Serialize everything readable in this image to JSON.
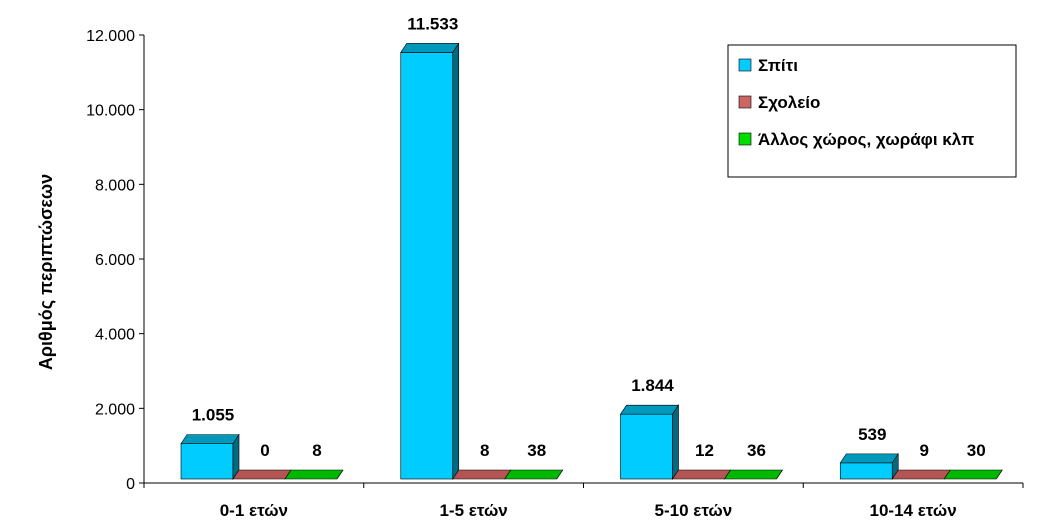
{
  "chart_data": {
    "type": "bar",
    "categories": [
      "0-1 ετών",
      "1-5 ετών",
      "5-10 ετών",
      "10-14 ετών"
    ],
    "series": [
      {
        "name": "Σπίτι",
        "values": [
          1055,
          11533,
          1844,
          539
        ],
        "labels": [
          "1.055",
          "11.533",
          "1.844",
          "539"
        ],
        "color": "#00ccff",
        "top": "#0099bb",
        "side": "#006a80"
      },
      {
        "name": "Σχολείο",
        "values": [
          0,
          8,
          12,
          9
        ],
        "labels": [
          "0",
          "8",
          "12",
          "9"
        ],
        "color": "#cc6666",
        "top": "#b45555",
        "side": "#7a3030"
      },
      {
        "name": "Άλλος χώρος, χωράφι κλπ",
        "values": [
          8,
          38,
          36,
          30
        ],
        "labels": [
          "8",
          "38",
          "36",
          "30"
        ],
        "color": "#00dd00",
        "top": "#00b800",
        "side": "#007a00"
      }
    ],
    "ylabel": "Αριθμός περιπτώσεων",
    "ylim": [
      0,
      12000
    ],
    "yticks": [
      0,
      2000,
      4000,
      6000,
      8000,
      10000,
      12000
    ],
    "ytick_labels": [
      "0",
      "2.000",
      "4.000",
      "6.000",
      "8.000",
      "10.000",
      "12.000"
    ],
    "grid": false,
    "legend_position": "top-right"
  }
}
